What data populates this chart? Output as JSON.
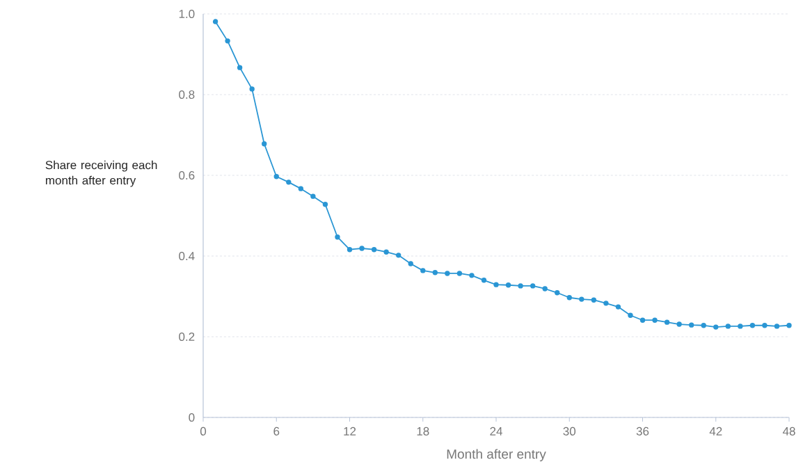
{
  "chart_data": {
    "type": "line",
    "xlabel": "Month after entry",
    "ylabel": "Share receiving each month after entry",
    "x": [
      1,
      2,
      3,
      4,
      5,
      6,
      7,
      8,
      9,
      10,
      11,
      12,
      13,
      14,
      15,
      16,
      17,
      18,
      19,
      20,
      21,
      22,
      23,
      24,
      25,
      26,
      27,
      28,
      29,
      30,
      31,
      32,
      33,
      34,
      35,
      36,
      37,
      38,
      39,
      40,
      41,
      42,
      43,
      44,
      45,
      46,
      47,
      48
    ],
    "values": [
      0.981,
      0.933,
      0.867,
      0.814,
      0.678,
      0.597,
      0.583,
      0.567,
      0.548,
      0.528,
      0.447,
      0.416,
      0.419,
      0.416,
      0.41,
      0.402,
      0.381,
      0.364,
      0.359,
      0.357,
      0.357,
      0.352,
      0.34,
      0.329,
      0.328,
      0.326,
      0.326,
      0.319,
      0.309,
      0.297,
      0.293,
      0.291,
      0.283,
      0.274,
      0.253,
      0.241,
      0.241,
      0.236,
      0.231,
      0.229,
      0.228,
      0.224,
      0.226,
      0.226,
      0.228,
      0.228,
      0.226,
      0.228
    ],
    "color": "#2a96d4",
    "marker": "circle",
    "line_style": "solid",
    "grid": "y",
    "xlim": [
      0,
      48
    ],
    "ylim": [
      0,
      1
    ],
    "xticks": [
      0,
      6,
      12,
      18,
      24,
      30,
      36,
      42,
      48
    ],
    "yticks": [
      0,
      0.2,
      0.4,
      0.6,
      0.8,
      {
        "value": 1,
        "label": "1.0"
      }
    ]
  }
}
